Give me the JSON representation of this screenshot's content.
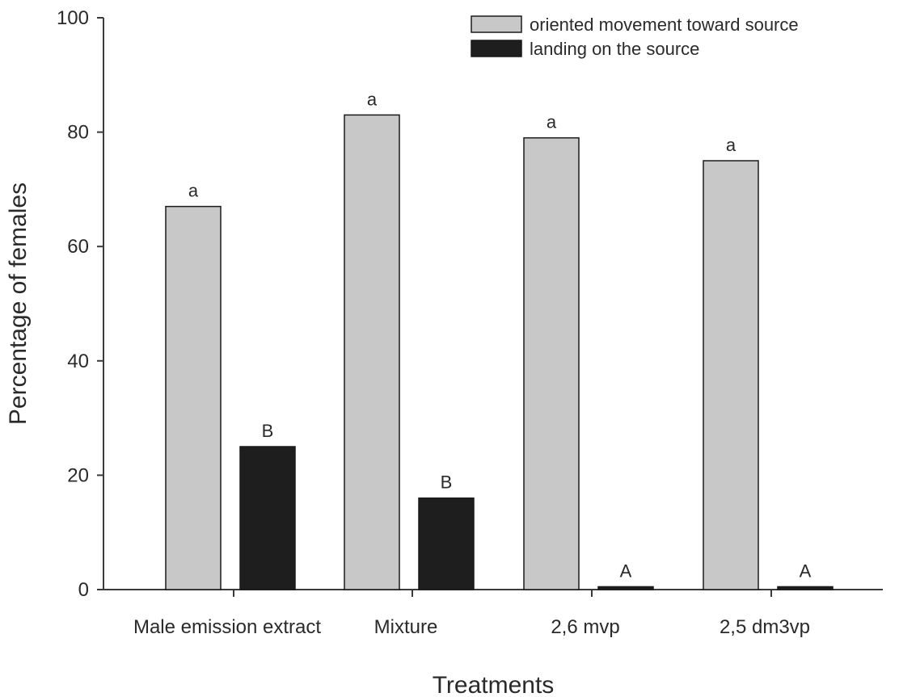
{
  "chart_data": {
    "type": "bar",
    "title": "",
    "xlabel": "Treatments",
    "ylabel": "Percentage of females",
    "ylim": [
      0,
      100
    ],
    "yticks": [
      0,
      20,
      40,
      60,
      80,
      100
    ],
    "categories": [
      "Male emission extract",
      "Mixture",
      "2,6 mvp",
      "2,5 dm3vp"
    ],
    "series": [
      {
        "name": "oriented movement toward source",
        "color": "#c8c8c8",
        "values": [
          67,
          83,
          79,
          75
        ],
        "significance": [
          "a",
          "a",
          "a",
          "a"
        ]
      },
      {
        "name": "landing on the source",
        "color": "#1e1e1e",
        "values": [
          25,
          16,
          0.5,
          0.5
        ],
        "significance": [
          "B",
          "B",
          "A",
          "A"
        ]
      }
    ],
    "legend_position": "top-right",
    "grid": false
  }
}
